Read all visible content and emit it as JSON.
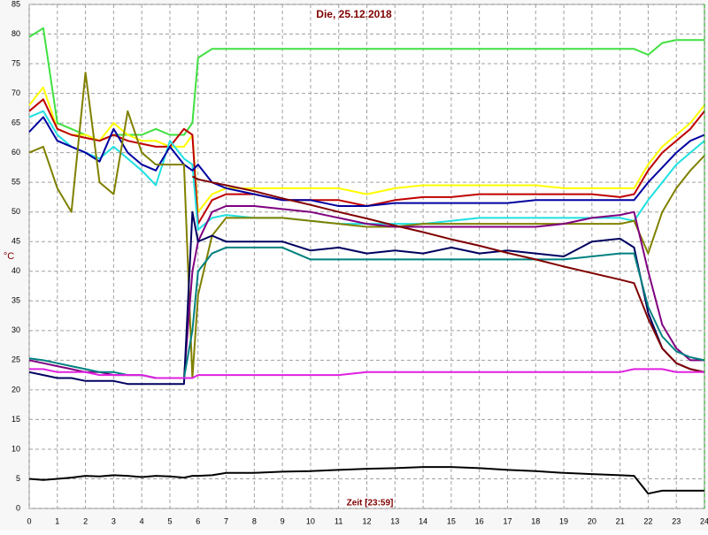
{
  "chart_data": {
    "type": "line",
    "title": "Die, 25.12.2018",
    "y_label": "°C",
    "x_label": "Zeit [23:59]",
    "x": [
      0,
      0.5,
      1,
      1.5,
      2,
      2.5,
      3,
      3.5,
      4,
      4.5,
      5,
      5.5,
      5.8,
      6,
      6.5,
      7,
      8,
      9,
      10,
      11,
      12,
      13,
      14,
      15,
      16,
      17,
      18,
      19,
      20,
      21,
      21.5,
      22,
      22.5,
      23,
      23.5,
      24
    ],
    "xlim": [
      0,
      24
    ],
    "xticks": [
      0,
      1,
      2,
      3,
      4,
      5,
      6,
      7,
      8,
      9,
      10,
      11,
      12,
      13,
      14,
      15,
      16,
      17,
      18,
      19,
      20,
      21,
      22,
      23,
      24
    ],
    "ylim": [
      0,
      85
    ],
    "yticks": [
      0,
      5,
      10,
      15,
      20,
      25,
      30,
      35,
      40,
      45,
      50,
      55,
      60,
      65,
      70,
      75,
      80,
      85
    ],
    "grid": true,
    "series": [
      {
        "color": "#40e040",
        "values": [
          79.5,
          81,
          65,
          64,
          63,
          62,
          63,
          63,
          63,
          64,
          63,
          63,
          65,
          76,
          77.5,
          77.5,
          77.5,
          77.5,
          77.5,
          77.5,
          77.5,
          77.5,
          77.5,
          77.5,
          77.5,
          77.5,
          77.5,
          77.5,
          77.5,
          77.5,
          77.5,
          76.5,
          78.5,
          79,
          79,
          79
        ]
      },
      {
        "color": "#ffff00",
        "values": [
          68,
          71,
          64,
          63,
          63,
          62,
          65,
          63,
          62,
          62,
          61,
          61,
          63,
          50,
          53,
          54,
          54,
          54,
          54,
          54,
          53,
          54,
          54.5,
          54.5,
          54.5,
          54.5,
          54.5,
          54,
          54,
          54,
          54,
          58,
          61,
          63,
          65,
          68
        ]
      },
      {
        "color": "#c00000",
        "values": [
          67,
          69,
          64,
          63,
          62.5,
          62,
          63,
          62,
          61.5,
          61,
          61,
          64,
          63,
          48,
          52,
          53,
          53,
          52,
          52,
          52,
          51,
          52,
          52.5,
          52.5,
          53,
          53,
          53,
          53,
          53,
          52.5,
          53,
          57,
          60,
          62,
          64,
          67
        ]
      },
      {
        "color": "#20e0e0",
        "values": [
          66,
          67,
          63,
          61,
          60,
          59,
          61,
          59,
          57,
          54.5,
          62,
          59,
          58,
          47,
          49,
          49.5,
          49,
          49,
          48.5,
          48,
          48,
          48,
          48,
          48.5,
          49,
          49,
          49,
          49,
          49,
          49,
          48.5,
          52,
          55,
          58,
          60,
          62
        ]
      },
      {
        "color": "#0000a0",
        "values": [
          63.5,
          66,
          62,
          61,
          60,
          58.5,
          64,
          60,
          58,
          57,
          61,
          58,
          57,
          58,
          55,
          54,
          53,
          52,
          52,
          51,
          51,
          51.5,
          51.5,
          51.5,
          51.5,
          51.5,
          52,
          52,
          52,
          52,
          52,
          55,
          57.5,
          60,
          62,
          63
        ]
      },
      {
        "color": "#808000",
        "values": [
          60,
          61,
          54,
          50,
          73.5,
          55,
          53,
          67,
          60,
          58,
          58,
          58,
          22,
          36,
          46,
          49,
          49,
          49,
          48.5,
          48,
          47.5,
          47.5,
          48,
          48,
          48,
          48,
          48,
          48,
          48,
          48,
          48.5,
          43,
          50,
          54,
          57,
          59.5
        ]
      },
      {
        "color": "#800080",
        "values": [
          25,
          24.5,
          24,
          23.5,
          23,
          23,
          22.5,
          22.5,
          22.5,
          22,
          22,
          22,
          40,
          45,
          50,
          51,
          51,
          50.5,
          50,
          49,
          48,
          47.5,
          47.5,
          47.5,
          47.5,
          47.5,
          47.5,
          48,
          49,
          49.5,
          50,
          40,
          31,
          27,
          25,
          25
        ]
      },
      {
        "color": "#000060",
        "values": [
          23,
          22.5,
          22,
          22,
          21.5,
          21.5,
          21.5,
          21,
          21,
          21,
          21,
          21,
          50,
          45,
          46,
          45,
          45,
          45,
          43.5,
          44,
          43,
          43.5,
          43,
          44,
          43,
          43.5,
          43,
          42.5,
          45,
          45.5,
          44,
          33,
          27,
          24.5,
          23.5,
          23
        ]
      },
      {
        "color": "#008080",
        "values": [
          25.3,
          25,
          24.5,
          24,
          23.5,
          23,
          23,
          22.5,
          22.5,
          22,
          22,
          22,
          30,
          40,
          43,
          44,
          44,
          44,
          42,
          42,
          42,
          42,
          42,
          42,
          42,
          42,
          42,
          42,
          42.5,
          43,
          43,
          34,
          29,
          26.5,
          25.5,
          25
        ]
      },
      {
        "color": "#800000",
        "values": [
          null,
          null,
          null,
          null,
          null,
          null,
          null,
          null,
          null,
          null,
          null,
          null,
          56,
          55.5,
          55,
          54.5,
          53.5,
          52.3,
          51.2,
          50,
          48.9,
          47.7,
          46.6,
          45.4,
          44.3,
          43.1,
          42,
          40.8,
          39.7,
          38.6,
          38,
          32,
          27,
          24.5,
          23.5,
          23
        ]
      },
      {
        "color": "#e020e0",
        "values": [
          23.5,
          23.5,
          23,
          23,
          23,
          22.5,
          22.5,
          22.5,
          22.5,
          22,
          22,
          22,
          22,
          22.5,
          22.5,
          22.5,
          22.5,
          22.5,
          22.5,
          22.5,
          23,
          23,
          23,
          23,
          23,
          23,
          23,
          23,
          23,
          23,
          23.5,
          23.5,
          23.5,
          23,
          23,
          23
        ]
      },
      {
        "color": "#000000",
        "values": [
          5,
          4.8,
          5,
          5.2,
          5.5,
          5.4,
          5.6,
          5.5,
          5.3,
          5.5,
          5.4,
          5.2,
          5.5,
          5.5,
          5.6,
          6,
          6,
          6.2,
          6.3,
          6.5,
          6.7,
          6.8,
          7,
          7,
          6.8,
          6.5,
          6.3,
          6,
          5.8,
          5.6,
          5.5,
          2.5,
          3,
          3,
          3,
          3
        ]
      }
    ]
  }
}
